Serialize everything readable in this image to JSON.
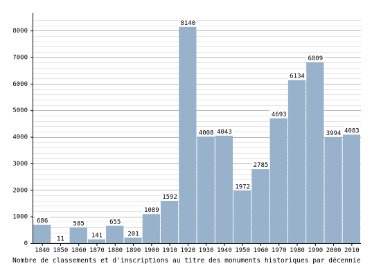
{
  "chart_data": {
    "type": "bar",
    "title": "",
    "xlabel": "Nombre de classements et d'inscriptions au titre des monuments historiques par décennie",
    "ylabel": "",
    "categories": [
      "1840",
      "1850",
      "1860",
      "1870",
      "1880",
      "1890",
      "1900",
      "1910",
      "1920",
      "1930",
      "1940",
      "1950",
      "1960",
      "1970",
      "1980",
      "1990",
      "2000",
      "2010"
    ],
    "values": [
      686,
      11,
      585,
      141,
      655,
      201,
      1089,
      1592,
      8140,
      4008,
      4043,
      1972,
      2785,
      4693,
      6134,
      6809,
      3994,
      4083
    ],
    "ylim": [
      0,
      8500
    ],
    "yticks": [
      0,
      1000,
      2000,
      3000,
      4000,
      5000,
      6000,
      7000,
      8000
    ],
    "grid": true,
    "bar_color": "#98b2cb",
    "grid_color": "#cccccc"
  }
}
